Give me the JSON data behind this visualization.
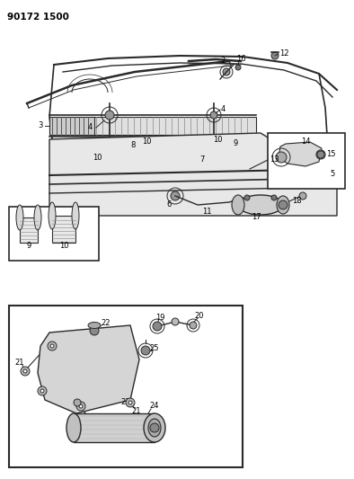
{
  "title": "90172 1500",
  "bg_color": "#ffffff",
  "line_color": "#2a2a2a",
  "figsize": [
    3.94,
    5.33
  ],
  "dpi": 100
}
